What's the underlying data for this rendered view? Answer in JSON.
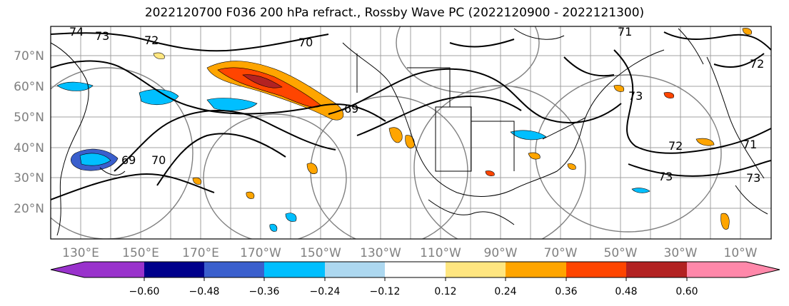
{
  "title": "2022120700 F036 200 hPa refract., Rossby Wave PC (2022120900 - 2022121300)",
  "lat_labels": [
    "70°N",
    "60°N",
    "50°N",
    "40°N",
    "30°N",
    "20°N"
  ],
  "lon_labels": [
    "130°E",
    "150°E",
    "170°E",
    "170°W",
    "150°W",
    "130°W",
    "110°W",
    "90°W",
    "70°W",
    "50°W",
    "30°W",
    "10°W"
  ],
  "contour_labels": [
    "74",
    "73",
    "72",
    "70",
    "71",
    "69",
    "72",
    "73",
    "72",
    "71",
    "69",
    "70",
    "73",
    "73"
  ],
  "colorbar": {
    "ticks": [
      "−0.60",
      "−0.48",
      "−0.36",
      "−0.24",
      "−0.12",
      "0.12",
      "0.24",
      "0.36",
      "0.48",
      "0.60"
    ],
    "colors": [
      "#9932cc",
      "#00008b",
      "#3a5fcd",
      "#00bfff",
      "#add8f0",
      "#ffffff",
      "#ffe680",
      "#ffa500",
      "#ff4500",
      "#b22222",
      "#ff88aa"
    ]
  }
}
